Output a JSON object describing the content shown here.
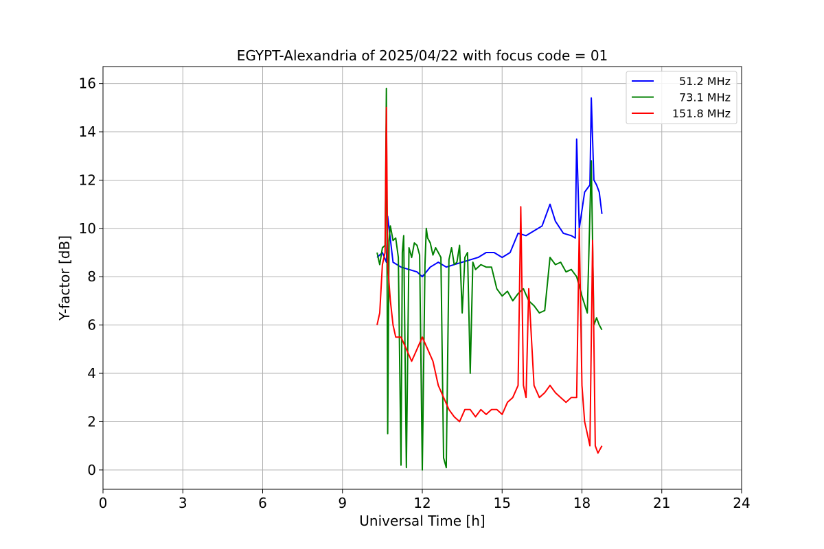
{
  "chart_data": {
    "type": "line",
    "title": "EGYPT-Alexandria of 2025/04/22 with focus code = 01",
    "xlabel": "Universal Time [h]",
    "ylabel": "Y-factor [dB]",
    "xlim": [
      0,
      24
    ],
    "ylim": [
      -0.8,
      16.7
    ],
    "xticks": [
      0,
      3,
      6,
      9,
      12,
      15,
      18,
      21,
      24
    ],
    "yticks": [
      0,
      2,
      4,
      6,
      8,
      10,
      12,
      14,
      16
    ],
    "grid": true,
    "legend_position": "top-right",
    "series": [
      {
        "name": "51.2 MHz",
        "color": "#0000ff",
        "x": [
          10.3,
          10.5,
          10.65,
          10.7,
          10.9,
          11.2,
          11.5,
          11.8,
          12.0,
          12.3,
          12.6,
          12.9,
          13.2,
          13.5,
          13.8,
          14.1,
          14.4,
          14.7,
          15.0,
          15.3,
          15.6,
          15.9,
          16.2,
          16.5,
          16.8,
          17.0,
          17.3,
          17.6,
          17.75,
          17.8,
          17.9,
          18.1,
          18.3,
          18.35,
          18.45,
          18.55,
          18.65,
          18.75
        ],
        "y": [
          8.8,
          9.0,
          8.6,
          10.5,
          8.6,
          8.4,
          8.3,
          8.2,
          8.0,
          8.4,
          8.6,
          8.4,
          8.5,
          8.6,
          8.7,
          8.8,
          9.0,
          9.0,
          8.8,
          9.0,
          9.8,
          9.7,
          9.9,
          10.1,
          11.0,
          10.3,
          9.8,
          9.7,
          9.6,
          13.7,
          10.0,
          11.5,
          11.8,
          15.4,
          12.0,
          11.8,
          11.5,
          10.6
        ]
      },
      {
        "name": "73.1 MHz",
        "color": "#008000",
        "x": [
          10.3,
          10.4,
          10.5,
          10.6,
          10.65,
          10.7,
          10.75,
          10.8,
          10.9,
          11.0,
          11.1,
          11.2,
          11.25,
          11.3,
          11.4,
          11.5,
          11.6,
          11.7,
          11.8,
          11.9,
          12.0,
          12.1,
          12.15,
          12.2,
          12.3,
          12.4,
          12.5,
          12.6,
          12.7,
          12.8,
          12.9,
          13.0,
          13.1,
          13.2,
          13.3,
          13.4,
          13.5,
          13.6,
          13.7,
          13.8,
          13.9,
          14.0,
          14.2,
          14.4,
          14.6,
          14.8,
          15.0,
          15.2,
          15.4,
          15.6,
          15.8,
          16.0,
          16.2,
          16.4,
          16.6,
          16.8,
          17.0,
          17.2,
          17.4,
          17.6,
          17.8,
          18.0,
          18.2,
          18.35,
          18.45,
          18.55,
          18.65,
          18.75
        ],
        "y": [
          9.0,
          8.5,
          9.2,
          9.3,
          15.8,
          1.5,
          9.5,
          10.1,
          9.5,
          9.6,
          8.8,
          0.2,
          9.0,
          9.7,
          0.1,
          9.2,
          8.8,
          9.4,
          9.3,
          8.9,
          0.0,
          8.5,
          10.0,
          9.6,
          9.4,
          8.9,
          9.2,
          9.0,
          8.8,
          0.5,
          0.1,
          8.7,
          9.2,
          8.5,
          8.6,
          9.3,
          6.5,
          8.8,
          9.0,
          4.0,
          8.6,
          8.3,
          8.5,
          8.4,
          8.4,
          7.5,
          7.2,
          7.4,
          7.0,
          7.3,
          7.5,
          7.0,
          6.8,
          6.5,
          6.6,
          8.8,
          8.5,
          8.6,
          8.2,
          8.3,
          8.0,
          7.2,
          6.5,
          12.8,
          6.0,
          6.3,
          6.0,
          5.8
        ]
      },
      {
        "name": "151.8 MHz",
        "color": "#ff0000",
        "x": [
          10.3,
          10.4,
          10.5,
          10.6,
          10.65,
          10.7,
          10.8,
          10.9,
          11.0,
          11.2,
          11.4,
          11.6,
          11.8,
          12.0,
          12.2,
          12.4,
          12.6,
          12.8,
          13.0,
          13.2,
          13.4,
          13.6,
          13.8,
          14.0,
          14.2,
          14.4,
          14.6,
          14.8,
          15.0,
          15.2,
          15.4,
          15.6,
          15.7,
          15.8,
          15.9,
          16.0,
          16.2,
          16.4,
          16.6,
          16.8,
          17.0,
          17.2,
          17.4,
          17.6,
          17.8,
          17.9,
          18.0,
          18.1,
          18.2,
          18.3,
          18.4,
          18.5,
          18.6,
          18.75
        ],
        "y": [
          6.0,
          6.5,
          8.5,
          9.0,
          15.0,
          8.5,
          7.0,
          6.0,
          5.5,
          5.5,
          5.0,
          4.5,
          5.0,
          5.5,
          5.0,
          4.5,
          3.5,
          3.0,
          2.5,
          2.2,
          2.0,
          2.5,
          2.5,
          2.2,
          2.5,
          2.3,
          2.5,
          2.5,
          2.3,
          2.8,
          3.0,
          3.5,
          10.9,
          3.5,
          3.0,
          7.5,
          3.5,
          3.0,
          3.2,
          3.5,
          3.2,
          3.0,
          2.8,
          3.0,
          3.0,
          10.0,
          3.5,
          2.0,
          1.5,
          1.0,
          9.5,
          1.0,
          0.7,
          1.0
        ]
      }
    ]
  }
}
